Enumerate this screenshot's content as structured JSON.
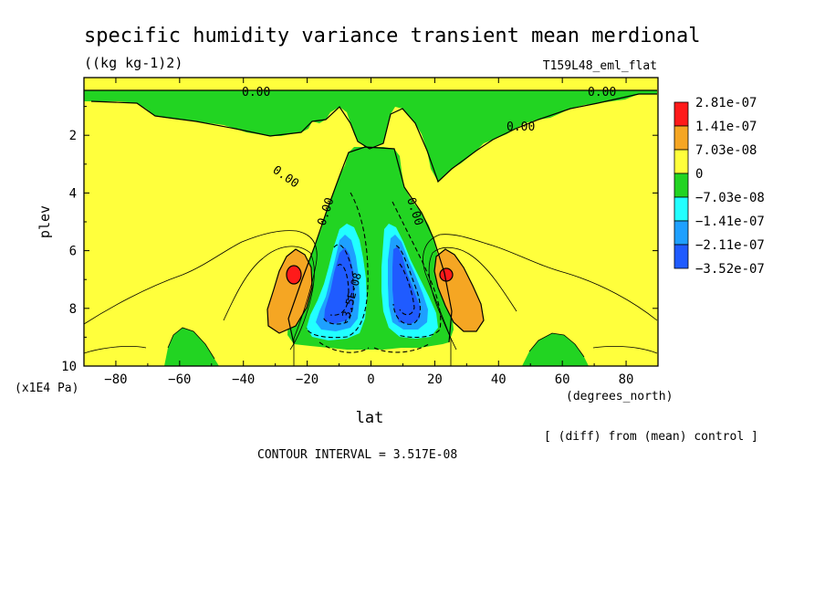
{
  "chart_data": {
    "type": "contour",
    "title": "specific humidity variance transient mean merdional",
    "units": "((kg kg-1)2)",
    "run_label": "T159L48_eml_flat",
    "xlabel": "lat",
    "xunits": "(degrees_north)",
    "ylabel": "plev",
    "yunits": "(x1E4 Pa)",
    "xlim": [
      -90,
      90
    ],
    "ylim": [
      10,
      0
    ],
    "x_ticks": [
      -80,
      -60,
      -40,
      -20,
      0,
      20,
      40,
      60,
      80
    ],
    "y_ticks": [
      2,
      4,
      6,
      8,
      10
    ],
    "x_tick_labels": [
      "-80",
      "-60",
      "-40",
      "-20",
      "0",
      "20",
      "40",
      "60",
      "80"
    ],
    "y_tick_labels": [
      "2",
      "4",
      "6",
      "8",
      "10"
    ],
    "contour_interval_text": "CONTOUR INTERVAL = 3.517E-08",
    "footnote": "[ (diff) from (mean) control ]",
    "contour_labels": [
      "0.00",
      "0.00",
      "0.00",
      "0.00",
      "0.00",
      "0.00",
      "-3.5E-08"
    ],
    "colorbar": {
      "levels": [
        "2.81e-07",
        "1.41e-07",
        "7.03e-08",
        "0",
        "-7.03e-08",
        "-1.41e-07",
        "-2.11e-07",
        "-3.52e-07"
      ],
      "colors": [
        "#ff1a1a",
        "#f5a623",
        "#ffff3c",
        "#22d422",
        "#22ffff",
        "#1ea0ff",
        "#1f5bff"
      ]
    },
    "colors": {
      "red": "#ff1a1a",
      "orange": "#f5a623",
      "yellow": "#ffff3c",
      "green": "#22d422",
      "cyan": "#22ffff",
      "light_blue": "#1ea0ff",
      "blue": "#1f5bff"
    }
  }
}
